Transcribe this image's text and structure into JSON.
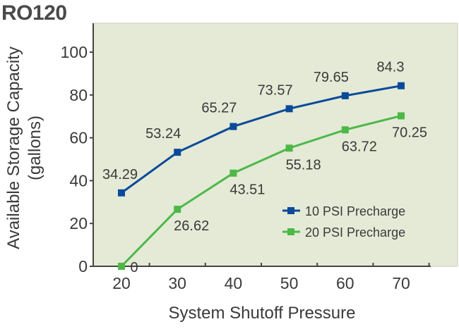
{
  "chart_data": {
    "type": "line",
    "title": "RO120",
    "xlabel": "System Shutoff Pressure",
    "ylabel": "Available Storage Capacity (gallons)",
    "ylabel_lines": [
      "Available Storage Capacity",
      "(gallons)"
    ],
    "x": [
      20,
      30,
      40,
      50,
      60,
      70
    ],
    "xlim": [
      15,
      75
    ],
    "ylim": [
      0,
      100
    ],
    "yticks": [
      0,
      20,
      40,
      60,
      80,
      100
    ],
    "grid": false,
    "background": "#e4ead6",
    "legend_position": "bottom-right",
    "series": [
      {
        "name": "10 PSI Precharge",
        "color": "#0a4a9a",
        "values": [
          34.29,
          53.24,
          65.27,
          73.57,
          79.65,
          84.3
        ],
        "labels": [
          "34.29",
          "53.24",
          "65.27",
          "73.57",
          "79.65",
          "84.3"
        ],
        "label_position": "above"
      },
      {
        "name": "20 PSI Precharge",
        "color": "#4db848",
        "values": [
          0,
          26.62,
          43.51,
          55.18,
          63.72,
          70.25
        ],
        "labels": [
          "0",
          "26.62",
          "43.51",
          "55.18",
          "63.72",
          "70.25"
        ],
        "label_position": "below"
      }
    ]
  }
}
